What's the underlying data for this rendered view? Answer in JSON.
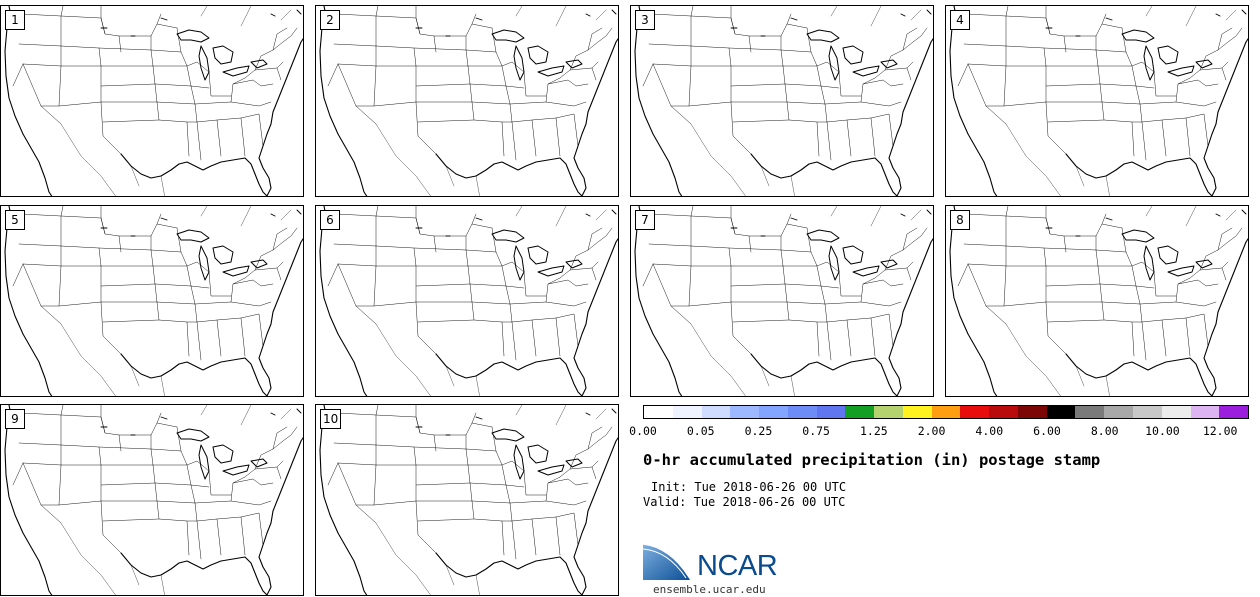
{
  "panels": [
    {
      "label": "1"
    },
    {
      "label": "2"
    },
    {
      "label": "3"
    },
    {
      "label": "4"
    },
    {
      "label": "5"
    },
    {
      "label": "6"
    },
    {
      "label": "7"
    },
    {
      "label": "8"
    },
    {
      "label": "9"
    },
    {
      "label": "10"
    }
  ],
  "colorbar": {
    "colors": [
      "#ffffff",
      "#eef3ff",
      "#cfdcff",
      "#9db8ff",
      "#84a5ff",
      "#6e8cf6",
      "#5f76f0",
      "#139e24",
      "#b4d26e",
      "#fff21e",
      "#ff9e10",
      "#e80d0d",
      "#b90b0b",
      "#7c0606",
      "#000000",
      "#7a7a7a",
      "#a8a8a8",
      "#c8c8c8",
      "#ececec",
      "#dcb4f2",
      "#9b1ddd"
    ],
    "labels": [
      "0.00",
      "0.05",
      "0.25",
      "0.75",
      "1.25",
      "2.00",
      "4.00",
      "6.00",
      "8.00",
      "10.00",
      "12.00"
    ]
  },
  "title": "0-hr accumulated precipitation (in) postage stamp",
  "init": "Init: Tue 2018-06-26 00 UTC",
  "valid": "Valid: Tue 2018-06-26 00 UTC",
  "logo": {
    "text": "NCAR"
  },
  "url": "ensemble.ucar.edu"
}
